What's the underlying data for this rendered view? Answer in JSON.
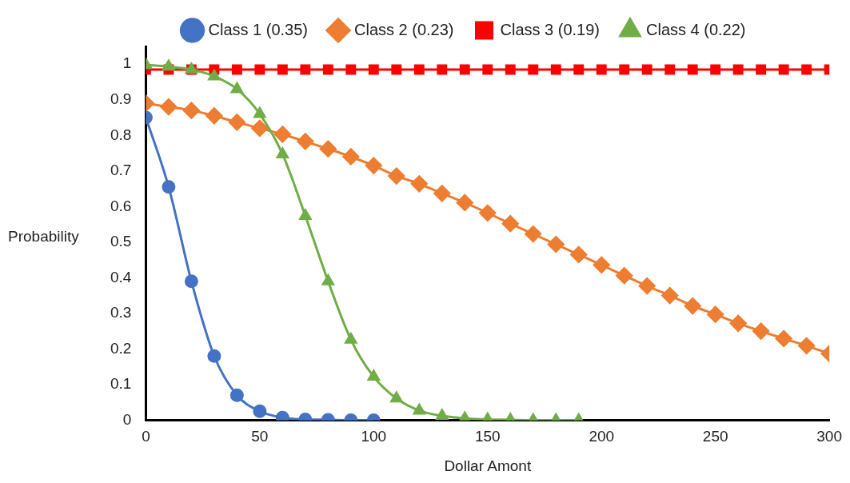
{
  "chart_data": {
    "type": "line",
    "xlabel": "Dollar Amont",
    "ylabel": "Probability",
    "xlim": [
      0,
      300
    ],
    "xticks": [
      0,
      50,
      100,
      150,
      200,
      250,
      300
    ],
    "ylim": [
      0,
      1.05
    ],
    "yticks": [
      0,
      0.1,
      0.2,
      0.3,
      0.4,
      0.5,
      0.6,
      0.7,
      0.8,
      0.9,
      1
    ],
    "grid": false,
    "legend": "top",
    "series": [
      {
        "name": "Class 1 (0.35)",
        "color": "#4472c4",
        "marker": "circle",
        "x": [
          0,
          10,
          20,
          30,
          40,
          50,
          60,
          70,
          80,
          90,
          100
        ],
        "values": [
          0.85,
          0.655,
          0.39,
          0.18,
          0.07,
          0.025,
          0.007,
          0.002,
          0.001,
          0,
          0
        ]
      },
      {
        "name": "Class 2 (0.23)",
        "color": "#ed7d31",
        "marker": "diamond",
        "x": [
          0,
          10,
          20,
          30,
          40,
          50,
          60,
          70,
          80,
          90,
          100,
          110,
          120,
          130,
          140,
          150,
          160,
          170,
          180,
          190,
          200,
          210,
          220,
          230,
          240,
          250,
          260,
          270,
          280,
          290,
          300
        ],
        "values": [
          0.89,
          0.88,
          0.87,
          0.855,
          0.837,
          0.82,
          0.803,
          0.783,
          0.762,
          0.74,
          0.715,
          0.686,
          0.664,
          0.637,
          0.611,
          0.582,
          0.552,
          0.523,
          0.494,
          0.465,
          0.436,
          0.406,
          0.377,
          0.35,
          0.321,
          0.297,
          0.272,
          0.25,
          0.229,
          0.209,
          0.187
        ]
      },
      {
        "name": "Class 3 (0.19)",
        "color": "#ff0000",
        "marker": "square",
        "x": [
          0,
          10,
          20,
          30,
          40,
          50,
          60,
          70,
          80,
          90,
          100,
          110,
          120,
          130,
          140,
          150,
          160,
          170,
          180,
          190,
          200,
          210,
          220,
          230,
          240,
          250,
          260,
          270,
          280,
          290,
          300
        ],
        "values": [
          0.985,
          0.985,
          0.985,
          0.985,
          0.985,
          0.985,
          0.985,
          0.985,
          0.985,
          0.985,
          0.985,
          0.985,
          0.985,
          0.985,
          0.985,
          0.985,
          0.985,
          0.985,
          0.985,
          0.985,
          0.985,
          0.985,
          0.985,
          0.985,
          0.985,
          0.985,
          0.985,
          0.985,
          0.985,
          0.985,
          0.985
        ]
      },
      {
        "name": "Class 4 (0.22)",
        "color": "#70ad47",
        "marker": "triangle",
        "x": [
          0,
          10,
          20,
          30,
          40,
          50,
          60,
          70,
          80,
          90,
          100,
          110,
          120,
          130,
          140,
          150,
          160,
          170,
          180,
          190
        ],
        "values": [
          0.998,
          0.993,
          0.985,
          0.966,
          0.93,
          0.86,
          0.747,
          0.574,
          0.39,
          0.226,
          0.122,
          0.061,
          0.027,
          0.012,
          0.005,
          0.002,
          0.001,
          0,
          0,
          0
        ]
      }
    ]
  }
}
